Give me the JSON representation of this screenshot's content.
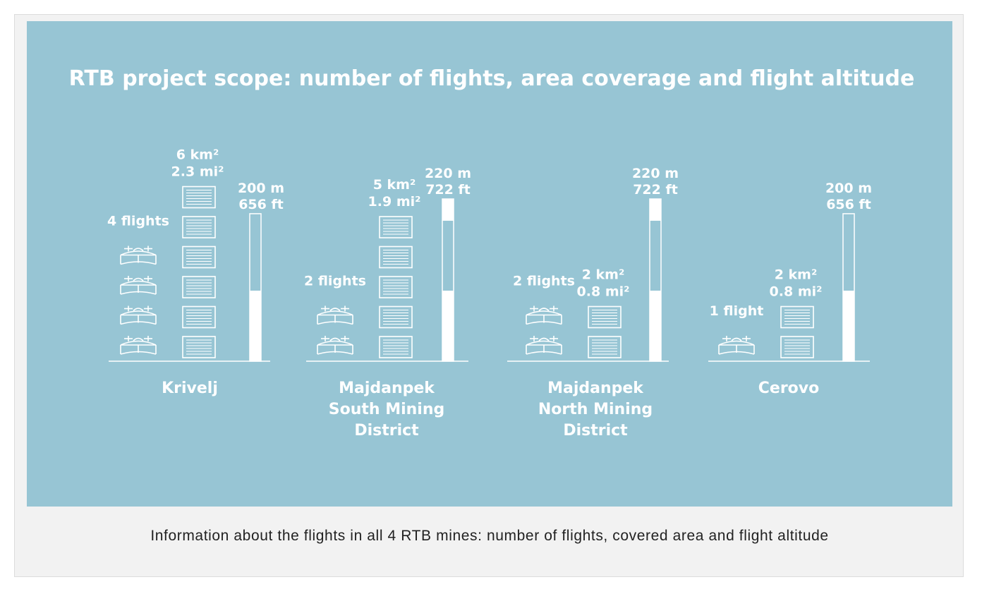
{
  "caption": "Information about the flights in all 4 RTB mines: number of flights, covered area and flight altitude",
  "colors": {
    "panel": "#97c5d4",
    "ink": "#ffffff",
    "frame": "#f2f2f2"
  },
  "chart_data": {
    "type": "pictogram",
    "title": "RTB project scope: number of flights, area coverage and flight altitude",
    "altitude_max_m": 220,
    "icons": {
      "flight": "drone-icon",
      "area": "area-grid-icon"
    },
    "mines": [
      {
        "name": "Krivelj",
        "flights": 4,
        "flights_label": "4 flights",
        "area_km2": 6,
        "area_label_km": "6 km²",
        "area_label_mi": "2.3 mi²",
        "altitude_m": 200,
        "altitude_label_m": "200 m",
        "altitude_label_ft": "656 ft"
      },
      {
        "name": "Majdanpek South Mining District",
        "name_lines": [
          "Majdanpek",
          "South Mining",
          "District"
        ],
        "flights": 2,
        "flights_label": "2 flights",
        "area_km2": 5,
        "area_label_km": "5 km²",
        "area_label_mi": "1.9 mi²",
        "altitude_m": 220,
        "altitude_label_m": "220 m",
        "altitude_label_ft": "722 ft"
      },
      {
        "name": "Majdanpek North Mining District",
        "name_lines": [
          "Majdanpek",
          "North Mining",
          "District"
        ],
        "flights": 2,
        "flights_label": "2 flights",
        "area_km2": 2,
        "area_label_km": "2 km²",
        "area_label_mi": "0.8 mi²",
        "altitude_m": 220,
        "altitude_label_m": "220 m",
        "altitude_label_ft": "722 ft"
      },
      {
        "name": "Cerovo",
        "flights": 1,
        "flights_label": "1 flight",
        "area_km2": 2,
        "area_label_km": "2 km²",
        "area_label_mi": "0.8 mi²",
        "altitude_m": 200,
        "altitude_label_m": "200 m",
        "altitude_label_ft": "656 ft"
      }
    ]
  }
}
